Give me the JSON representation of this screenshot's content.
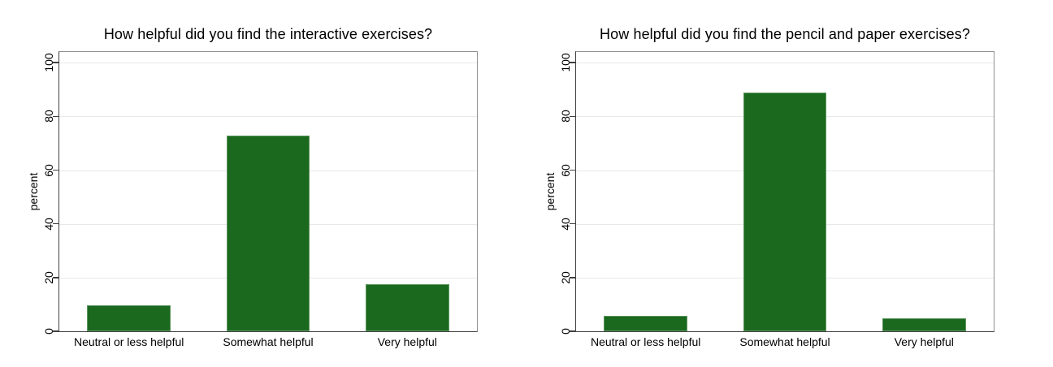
{
  "page": {
    "background": "#ffffff"
  },
  "colors": {
    "bar_fill": "#1a691e",
    "axis_line": "#404040",
    "frame_line": "#919191",
    "gridline": "#e8e8e8",
    "text": "#000000"
  },
  "chart_data": [
    {
      "type": "bar",
      "title": "How helpful did you find the interactive exercises?",
      "xlabel": "",
      "ylabel": "percent",
      "categories": [
        "Neutral or less helpful",
        "Somewhat helpful",
        "Very helpful"
      ],
      "values": [
        9.7,
        72.9,
        17.4
      ],
      "yticks": [
        0,
        20,
        40,
        60,
        80,
        100
      ],
      "ylim": [
        0,
        104
      ],
      "grid": true,
      "legend": "none",
      "bar_color": "#1a691e"
    },
    {
      "type": "bar",
      "title": "How helpful did you find the pencil and paper exercises?",
      "xlabel": "",
      "ylabel": "percent",
      "categories": [
        "Neutral or less helpful",
        "Somewhat helpful",
        "Very helpful"
      ],
      "values": [
        5.9,
        88.9,
        4.8
      ],
      "yticks": [
        0,
        20,
        40,
        60,
        80,
        100
      ],
      "ylim": [
        0,
        104
      ],
      "grid": true,
      "legend": "none",
      "bar_color": "#1a691e"
    }
  ]
}
